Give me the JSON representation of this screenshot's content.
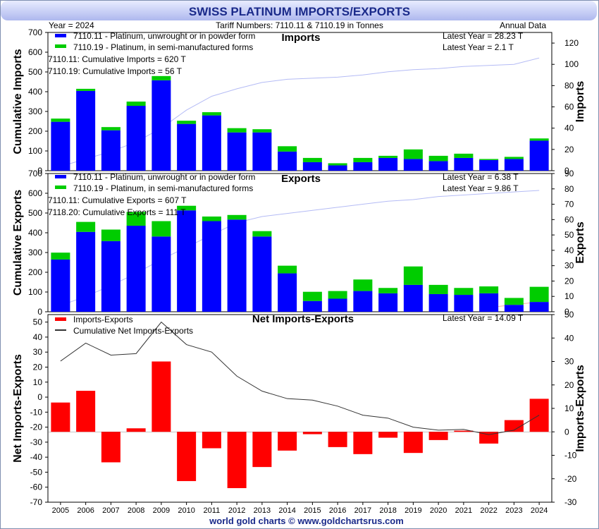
{
  "title": "SWISS PLATINUM IMPORTS/EXPORTS",
  "header": {
    "year": "Year = 2024",
    "tariff": "Tariff Numbers: 7110.11 & 7110.19 in Tonnes",
    "frequency": "Annual Data"
  },
  "footer": "world gold charts © www.goldchartsrus.com",
  "colors": {
    "unwrought": "#0000ff",
    "semi": "#00cc00",
    "cumulative": "#b4bbf5",
    "cumulative_exports": "#ffaaaa",
    "net": "#ff0000",
    "net_cumulative": "#333333",
    "title_text": "#1a2a8a"
  },
  "chart_data": [
    {
      "type": "bar",
      "stacked": true,
      "title": "Imports",
      "categories": [
        "2005",
        "2006",
        "2007",
        "2008",
        "2009",
        "2010",
        "2011",
        "2012",
        "2013",
        "2014",
        "2015",
        "2016",
        "2017",
        "2018",
        "2019",
        "2020",
        "2021",
        "2022",
        "2023",
        "2024"
      ],
      "series": [
        {
          "name": "7110.11 - Platinum, unwrought or in powder form",
          "values": [
            46,
            75,
            38,
            61,
            85,
            44,
            52,
            36,
            36,
            18,
            8,
            5,
            8,
            12,
            11,
            9,
            12,
            10,
            11,
            28.23
          ]
        },
        {
          "name": "7110.19 - Platinum, in semi-manufactured forms",
          "values": [
            3,
            2,
            3,
            4,
            4,
            3,
            3,
            4,
            3,
            5,
            4,
            2,
            4,
            2,
            9,
            5,
            4,
            1,
            2,
            2.1
          ]
        }
      ],
      "cumulative": [
        4,
        11,
        18,
        27,
        40,
        57,
        70,
        77,
        83,
        86,
        87,
        88,
        90,
        93,
        95,
        96,
        98,
        99,
        100,
        106
      ],
      "cumulative_axis_max": 700,
      "annotations": [
        "7110.11: Cumulative Imports = 620 T",
        "7110.19: Cumulative Imports = 56 T"
      ],
      "latest": [
        "Latest Year = 28.23 T",
        "Latest Year = 2.1 T"
      ],
      "ylabel_left": "Cumulative Imports",
      "ylabel_right": "Imports",
      "ylim_left": [
        0,
        700
      ],
      "ylim_right": [
        0,
        130
      ],
      "yticks_left": [
        "0",
        "100",
        "200",
        "300",
        "400",
        "500",
        "600",
        "700"
      ],
      "yticks_right": [
        "0",
        "20",
        "40",
        "60",
        "80",
        "100",
        "120"
      ]
    },
    {
      "type": "bar",
      "stacked": true,
      "title": "Exports",
      "categories": [
        "2005",
        "2006",
        "2007",
        "2008",
        "2009",
        "2010",
        "2011",
        "2012",
        "2013",
        "2014",
        "2015",
        "2016",
        "2017",
        "2018",
        "2019",
        "2020",
        "2021",
        "2022",
        "2023",
        "2024"
      ],
      "series": [
        {
          "name": "7110.11 - Platinum, unwrought or in powder form",
          "values": [
            34,
            52,
            46,
            56,
            49,
            66,
            59,
            60,
            49,
            25,
            7,
            8.5,
            13.5,
            12,
            17.5,
            11.5,
            11,
            12,
            4.5,
            6.38
          ]
        },
        {
          "name": "7110.19 - Platinum, in semi-manufactured forms",
          "values": [
            4.5,
            6.5,
            7.5,
            9,
            10,
            3,
            3,
            3,
            3.5,
            5,
            6,
            5,
            7.5,
            3.5,
            12,
            6,
            4.5,
            4.5,
            4.5,
            9.86
          ]
        }
      ],
      "cumulative": [
        4,
        10,
        17,
        25,
        34,
        42,
        50,
        58,
        62,
        64,
        66,
        68,
        70,
        72,
        73,
        75,
        76,
        77,
        78,
        79
      ],
      "cumulative_axis_max": 700,
      "annotations": [
        "7110.11: Cumulative Exports = 607 T",
        "7118.20: Cumulative Exports = 111 T"
      ],
      "latest": [
        "Latest Year = 6.38 T",
        "Latest Year = 9.86 T"
      ],
      "ylabel_left": "Cumulative Exports",
      "ylabel_right": "Exports",
      "ylim_left": [
        0,
        700
      ],
      "ylim_right": [
        0,
        90
      ],
      "yticks_left": [
        "0",
        "100",
        "200",
        "300",
        "400",
        "500",
        "600",
        "700"
      ],
      "yticks_right": [
        "0",
        "10",
        "20",
        "30",
        "40",
        "50",
        "60",
        "70",
        "80",
        "90"
      ]
    },
    {
      "type": "bar",
      "title": "Net Imports-Exports",
      "categories": [
        "2005",
        "2006",
        "2007",
        "2008",
        "2009",
        "2010",
        "2011",
        "2012",
        "2013",
        "2014",
        "2015",
        "2016",
        "2017",
        "2018",
        "2019",
        "2020",
        "2021",
        "2022",
        "2023",
        "2024"
      ],
      "series": [
        {
          "name": "Imports-Exports",
          "values": [
            12.5,
            17.5,
            -13,
            1.5,
            30,
            -21,
            -7,
            -24,
            -15,
            -8,
            -1,
            -6.5,
            -9.5,
            -2.5,
            -9,
            -3.5,
            0.5,
            -5,
            5,
            14.09
          ]
        },
        {
          "name": "Cumulative Net Imports-Exports",
          "type": "line",
          "values": [
            24,
            36,
            28,
            29,
            50,
            35,
            30,
            14,
            4,
            -1,
            -2,
            -6,
            -12,
            -14,
            -20,
            -22,
            -21.5,
            -25,
            -22,
            -12
          ]
        }
      ],
      "latest": [
        "Latest Year = 14.09 T"
      ],
      "ylabel_left": "Net Imports-Exports",
      "ylabel_right": "Imports-Exports",
      "ylim_left": [
        -70,
        55
      ],
      "ylim_right": [
        -30,
        50
      ],
      "yticks_left": [
        "-70",
        "-60",
        "-50",
        "-40",
        "-30",
        "-20",
        "-10",
        "0",
        "10",
        "20",
        "30",
        "40",
        "50"
      ],
      "yticks_right": [
        "-30",
        "-20",
        "-10",
        "0",
        "10",
        "20",
        "30",
        "40",
        "50"
      ]
    }
  ]
}
